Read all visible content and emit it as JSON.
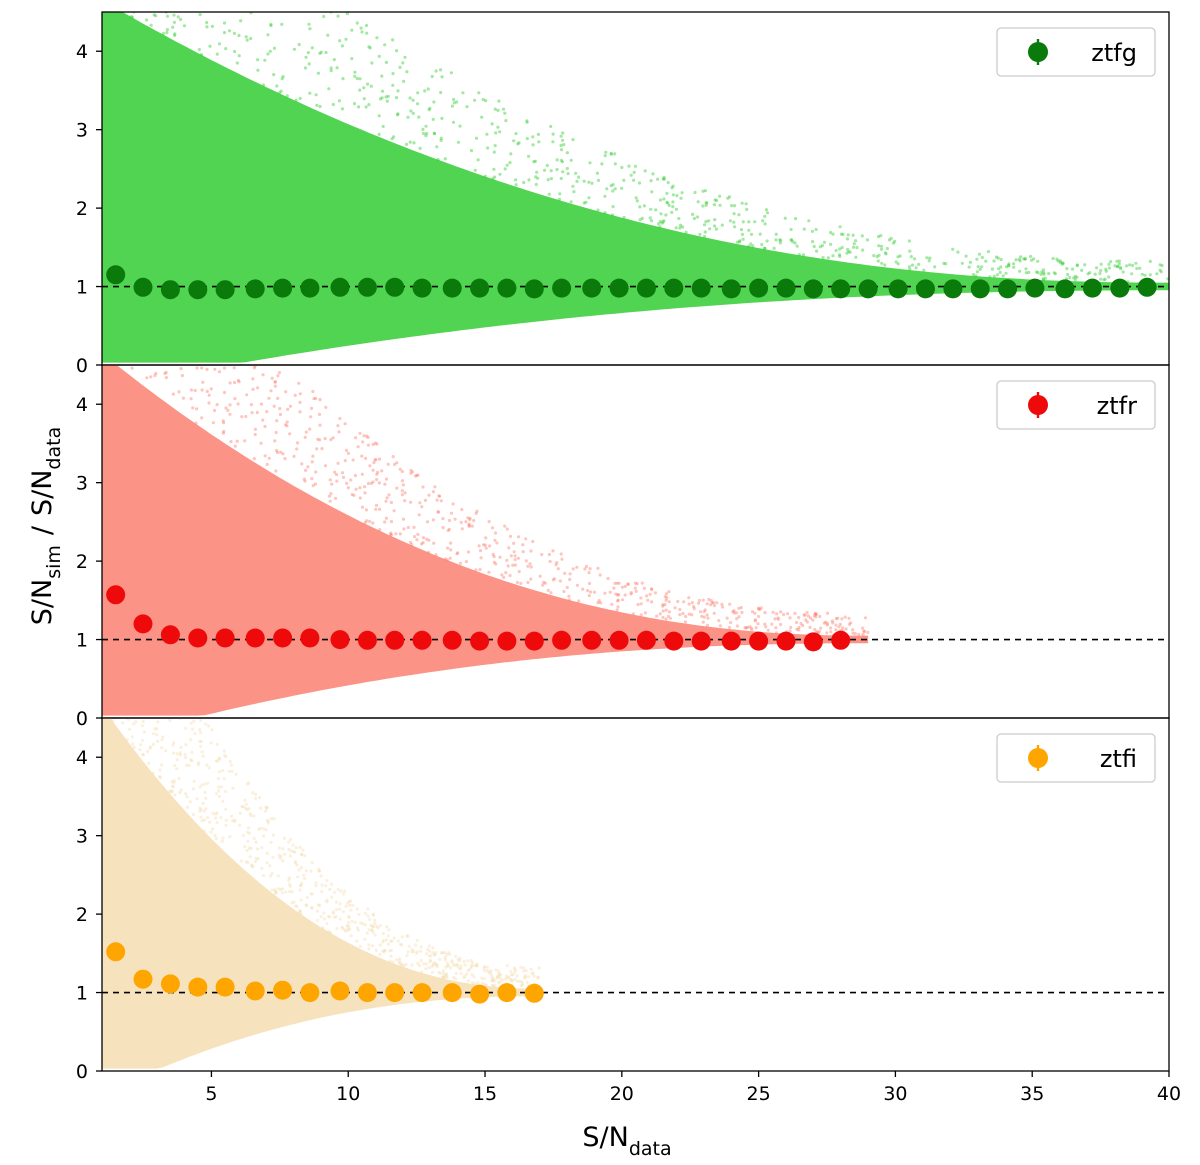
{
  "chart_data": {
    "type": "scatter",
    "layout": "three vertically stacked panels sharing the x axis",
    "xlabel": {
      "main": "S/N",
      "sub": "data"
    },
    "ylabel": {
      "part1_main": "S/N",
      "part1_sub": "sim",
      "separator": "/",
      "part2_main": "S/N",
      "part2_sub": "data"
    },
    "xlim": [
      1,
      40
    ],
    "xticks": [
      5,
      10,
      15,
      20,
      25,
      30,
      35,
      40
    ],
    "ylim": [
      0,
      4.5
    ],
    "yticks": [
      0,
      1,
      2,
      3,
      4
    ],
    "reference_line": {
      "y": 1,
      "style": "dashed",
      "color": "#000000"
    },
    "grid": false,
    "legend_placement": "top-right",
    "panels": [
      {
        "name": "ztfg",
        "marker_color": "#0a7a0a",
        "cloud_color": "#33cc33",
        "cloud_x_max": 40,
        "binned": {
          "x": [
            1.5,
            2.5,
            3.5,
            4.5,
            5.5,
            6.6,
            7.6,
            8.6,
            9.7,
            10.7,
            11.7,
            12.7,
            13.8,
            14.8,
            15.8,
            16.8,
            17.8,
            18.9,
            19.9,
            20.9,
            21.9,
            22.9,
            24.0,
            25.0,
            26.0,
            27.0,
            28.0,
            29.0,
            30.1,
            31.1,
            32.1,
            33.1,
            34.1,
            35.1,
            36.2,
            37.2,
            38.2,
            39.2
          ],
          "y": [
            1.15,
            0.99,
            0.96,
            0.96,
            0.96,
            0.97,
            0.98,
            0.98,
            0.99,
            0.99,
            0.99,
            0.98,
            0.98,
            0.98,
            0.98,
            0.97,
            0.98,
            0.98,
            0.98,
            0.98,
            0.98,
            0.98,
            0.97,
            0.98,
            0.98,
            0.97,
            0.97,
            0.97,
            0.97,
            0.97,
            0.97,
            0.97,
            0.97,
            0.98,
            0.97,
            0.98,
            0.98,
            0.99
          ]
        }
      },
      {
        "name": "ztfr",
        "marker_color": "#ee0a0a",
        "cloud_color": "#fa8072",
        "cloud_x_max": 29,
        "binned": {
          "x": [
            1.5,
            2.5,
            3.5,
            4.5,
            5.5,
            6.6,
            7.6,
            8.6,
            9.7,
            10.7,
            11.7,
            12.7,
            13.8,
            14.8,
            15.8,
            16.8,
            17.8,
            18.9,
            19.9,
            20.9,
            21.9,
            22.9,
            24.0,
            25.0,
            26.0,
            27.0,
            28.0
          ],
          "y": [
            1.57,
            1.2,
            1.06,
            1.02,
            1.02,
            1.02,
            1.02,
            1.02,
            1.0,
            0.99,
            0.99,
            0.99,
            0.99,
            0.98,
            0.98,
            0.98,
            0.99,
            0.99,
            0.99,
            0.99,
            0.98,
            0.98,
            0.98,
            0.98,
            0.98,
            0.97,
            0.99
          ]
        }
      },
      {
        "name": "ztfi",
        "marker_color": "#ffa500",
        "cloud_color": "#f5deb3",
        "cloud_x_max": 17,
        "binned": {
          "x": [
            1.5,
            2.5,
            3.5,
            4.5,
            5.5,
            6.6,
            7.6,
            8.6,
            9.7,
            10.7,
            11.7,
            12.7,
            13.8,
            14.8,
            15.8,
            16.8
          ],
          "y": [
            1.52,
            1.17,
            1.11,
            1.07,
            1.07,
            1.02,
            1.03,
            1.0,
            1.02,
            1.0,
            1.0,
            1.0,
            1.0,
            0.98,
            1.0,
            0.99
          ]
        }
      }
    ]
  }
}
